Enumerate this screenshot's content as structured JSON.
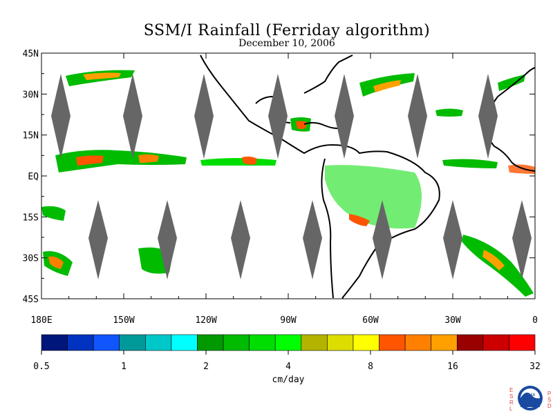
{
  "title": "SSM/I Rainfall (Ferriday algorithm)",
  "date": "December 10, 2006",
  "lat_labels": [
    "45N",
    "30N",
    "15N",
    "EQ",
    "15S",
    "30S",
    "45S"
  ],
  "lon_labels": [
    "180E",
    "150W",
    "120W",
    "90W",
    "60W",
    "30W",
    "0"
  ],
  "colorbar": {
    "colors": [
      "#00167a",
      "#0033c0",
      "#1155ff",
      "#00999a",
      "#00c8c8",
      "#00ffff",
      "#009a00",
      "#00bb00",
      "#00dd00",
      "#00ff00",
      "#b4b400",
      "#dddd00",
      "#ffff00",
      "#ff5500",
      "#ff8000",
      "#ffa000",
      "#990000",
      "#cc0000",
      "#ff0000"
    ],
    "ticks": [
      "0.5",
      "1",
      "2",
      "4",
      "8",
      "16",
      "32"
    ],
    "label": "cm/day"
  },
  "logo": {
    "left_letters": [
      "E",
      "S",
      "R",
      "L"
    ],
    "right_letters": [
      "P",
      "S",
      "D"
    ],
    "badge": "NOAA"
  },
  "colors": {
    "land_outline": "#000000",
    "swath_gap": "#666666",
    "missing": "#777777"
  }
}
